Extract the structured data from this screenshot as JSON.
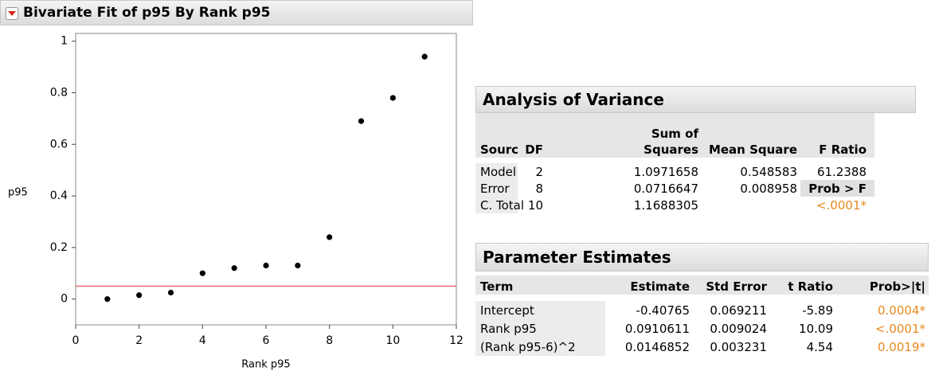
{
  "header": {
    "title": "Bivariate Fit of p95 By Rank p95"
  },
  "chart_data": {
    "type": "scatter",
    "x": [
      1,
      2,
      3,
      4,
      5,
      6,
      7,
      8,
      9,
      10,
      11
    ],
    "series": [
      {
        "name": null,
        "color": "#000000",
        "values": [
          0.0,
          0.015,
          0.025,
          0.1,
          0.12,
          0.13,
          0.13,
          0.24,
          0.69,
          0.78,
          0.94
        ]
      }
    ],
    "xlabel": "Rank p95",
    "ylabel": "p95",
    "xlim": [
      0,
      12
    ],
    "xticks": [
      0,
      2,
      4,
      6,
      8,
      10,
      12
    ],
    "ylim": [
      -0.1,
      1.03
    ],
    "yticks": [
      0,
      0.2,
      0.4,
      0.6,
      0.8,
      1
    ],
    "reference_line": {
      "value": 0.05,
      "color": "#e8606a"
    }
  },
  "anova": {
    "title": "Analysis of Variance",
    "columns": [
      "Source",
      "DF",
      "Sum of Squares",
      "Mean Square",
      "F Ratio"
    ],
    "rows": [
      [
        "Model",
        "2",
        "1.0971658",
        "0.548583",
        "61.2388"
      ],
      [
        "Error",
        "8",
        "0.0716647",
        "0.008958",
        "Prob > F"
      ],
      [
        "C. Total",
        "10",
        "1.1688305",
        null,
        "<.0001*"
      ]
    ]
  },
  "parameter_estimates": {
    "title": "Parameter Estimates",
    "columns": [
      "Term",
      "Estimate",
      "Std Error",
      "t Ratio",
      "Prob>|t|"
    ],
    "rows": [
      [
        "Intercept",
        "-0.40765",
        "0.069211",
        "-5.89",
        "0.0004*"
      ],
      [
        "Rank p95",
        "0.0910611",
        "0.009024",
        "10.09",
        "<.0001*"
      ],
      [
        "(Rank p95-6)^2",
        "0.0146852",
        "0.003231",
        "4.54",
        "0.0019*"
      ]
    ]
  }
}
